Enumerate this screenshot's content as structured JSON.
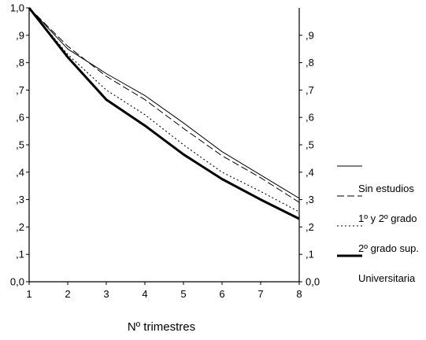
{
  "chart_data": {
    "type": "line",
    "title": "",
    "xlabel": "Nº trimestres",
    "ylabel": "",
    "x": [
      1,
      2,
      3,
      4,
      5,
      6,
      7,
      8
    ],
    "xlim": [
      1,
      8
    ],
    "ylim": [
      0,
      1
    ],
    "left_y_ticks": [
      "0,0",
      ",1",
      ",2",
      ",3",
      ",4",
      ",5",
      ",6",
      ",7",
      ",8",
      ",9",
      "1,0"
    ],
    "right_y_ticks": [
      "0,0",
      ",1",
      ",2",
      ",3",
      ",4",
      ",5",
      ",6",
      ",7",
      ",8",
      ",9"
    ],
    "x_ticks": [
      "1",
      "2",
      "3",
      "4",
      "5",
      "6",
      "7",
      "8"
    ],
    "grid": false,
    "legend_position": "right",
    "series": [
      {
        "name": "Sin estudios",
        "style": "thin-solid",
        "color": "#000000",
        "values": [
          1.0,
          0.85,
          0.76,
          0.68,
          0.58,
          0.475,
          0.39,
          0.305
        ]
      },
      {
        "name": "1º y 2º  grado",
        "style": "dashed",
        "color": "#000000",
        "values": [
          1.0,
          0.86,
          0.75,
          0.665,
          0.56,
          0.46,
          0.38,
          0.29
        ]
      },
      {
        "name": "2º grado sup.",
        "style": "dotted",
        "color": "#000000",
        "values": [
          1.0,
          0.83,
          0.7,
          0.61,
          0.5,
          0.4,
          0.33,
          0.255
        ]
      },
      {
        "name": "Universitaria",
        "style": "thick-solid",
        "color": "#000000",
        "values": [
          1.0,
          0.82,
          0.665,
          0.57,
          0.465,
          0.375,
          0.3,
          0.23
        ]
      }
    ]
  }
}
